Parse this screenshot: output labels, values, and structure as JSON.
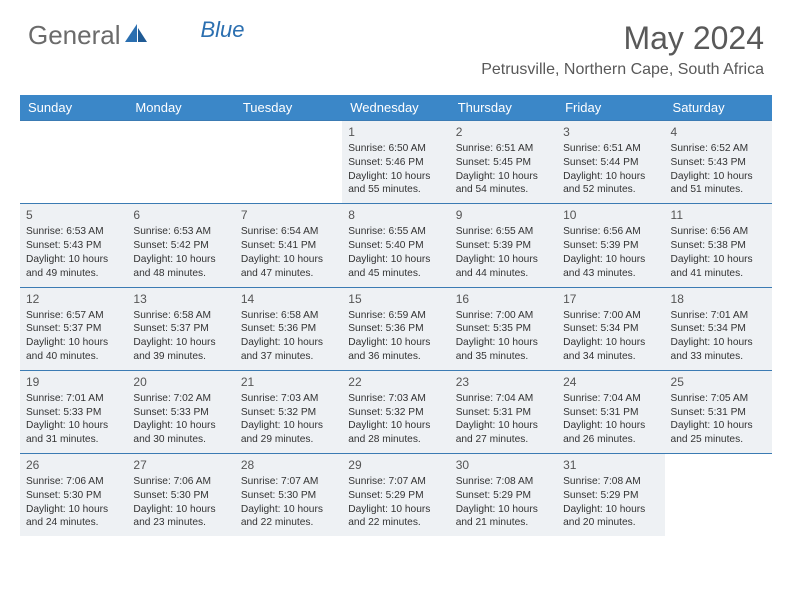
{
  "logo": {
    "text1": "General",
    "text2": "Blue"
  },
  "title": "May 2024",
  "location": "Petrusville, Northern Cape, South Africa",
  "colors": {
    "header_bg": "#3b87c8",
    "header_text": "#ffffff",
    "border": "#3b7bb3",
    "shaded_bg": "#eef1f4",
    "text": "#333333",
    "title_text": "#595959",
    "logo_gray": "#6b6b6b",
    "logo_blue": "#2b6fb0"
  },
  "day_headers": [
    "Sunday",
    "Monday",
    "Tuesday",
    "Wednesday",
    "Thursday",
    "Friday",
    "Saturday"
  ],
  "weeks": [
    [
      null,
      null,
      null,
      {
        "n": "1",
        "sr": "6:50 AM",
        "ss": "5:46 PM",
        "dl": "10 hours and 55 minutes."
      },
      {
        "n": "2",
        "sr": "6:51 AM",
        "ss": "5:45 PM",
        "dl": "10 hours and 54 minutes."
      },
      {
        "n": "3",
        "sr": "6:51 AM",
        "ss": "5:44 PM",
        "dl": "10 hours and 52 minutes."
      },
      {
        "n": "4",
        "sr": "6:52 AM",
        "ss": "5:43 PM",
        "dl": "10 hours and 51 minutes."
      }
    ],
    [
      {
        "n": "5",
        "sr": "6:53 AM",
        "ss": "5:43 PM",
        "dl": "10 hours and 49 minutes."
      },
      {
        "n": "6",
        "sr": "6:53 AM",
        "ss": "5:42 PM",
        "dl": "10 hours and 48 minutes."
      },
      {
        "n": "7",
        "sr": "6:54 AM",
        "ss": "5:41 PM",
        "dl": "10 hours and 47 minutes."
      },
      {
        "n": "8",
        "sr": "6:55 AM",
        "ss": "5:40 PM",
        "dl": "10 hours and 45 minutes."
      },
      {
        "n": "9",
        "sr": "6:55 AM",
        "ss": "5:39 PM",
        "dl": "10 hours and 44 minutes."
      },
      {
        "n": "10",
        "sr": "6:56 AM",
        "ss": "5:39 PM",
        "dl": "10 hours and 43 minutes."
      },
      {
        "n": "11",
        "sr": "6:56 AM",
        "ss": "5:38 PM",
        "dl": "10 hours and 41 minutes."
      }
    ],
    [
      {
        "n": "12",
        "sr": "6:57 AM",
        "ss": "5:37 PM",
        "dl": "10 hours and 40 minutes."
      },
      {
        "n": "13",
        "sr": "6:58 AM",
        "ss": "5:37 PM",
        "dl": "10 hours and 39 minutes."
      },
      {
        "n": "14",
        "sr": "6:58 AM",
        "ss": "5:36 PM",
        "dl": "10 hours and 37 minutes."
      },
      {
        "n": "15",
        "sr": "6:59 AM",
        "ss": "5:36 PM",
        "dl": "10 hours and 36 minutes."
      },
      {
        "n": "16",
        "sr": "7:00 AM",
        "ss": "5:35 PM",
        "dl": "10 hours and 35 minutes."
      },
      {
        "n": "17",
        "sr": "7:00 AM",
        "ss": "5:34 PM",
        "dl": "10 hours and 34 minutes."
      },
      {
        "n": "18",
        "sr": "7:01 AM",
        "ss": "5:34 PM",
        "dl": "10 hours and 33 minutes."
      }
    ],
    [
      {
        "n": "19",
        "sr": "7:01 AM",
        "ss": "5:33 PM",
        "dl": "10 hours and 31 minutes."
      },
      {
        "n": "20",
        "sr": "7:02 AM",
        "ss": "5:33 PM",
        "dl": "10 hours and 30 minutes."
      },
      {
        "n": "21",
        "sr": "7:03 AM",
        "ss": "5:32 PM",
        "dl": "10 hours and 29 minutes."
      },
      {
        "n": "22",
        "sr": "7:03 AM",
        "ss": "5:32 PM",
        "dl": "10 hours and 28 minutes."
      },
      {
        "n": "23",
        "sr": "7:04 AM",
        "ss": "5:31 PM",
        "dl": "10 hours and 27 minutes."
      },
      {
        "n": "24",
        "sr": "7:04 AM",
        "ss": "5:31 PM",
        "dl": "10 hours and 26 minutes."
      },
      {
        "n": "25",
        "sr": "7:05 AM",
        "ss": "5:31 PM",
        "dl": "10 hours and 25 minutes."
      }
    ],
    [
      {
        "n": "26",
        "sr": "7:06 AM",
        "ss": "5:30 PM",
        "dl": "10 hours and 24 minutes."
      },
      {
        "n": "27",
        "sr": "7:06 AM",
        "ss": "5:30 PM",
        "dl": "10 hours and 23 minutes."
      },
      {
        "n": "28",
        "sr": "7:07 AM",
        "ss": "5:30 PM",
        "dl": "10 hours and 22 minutes."
      },
      {
        "n": "29",
        "sr": "7:07 AM",
        "ss": "5:29 PM",
        "dl": "10 hours and 22 minutes."
      },
      {
        "n": "30",
        "sr": "7:08 AM",
        "ss": "5:29 PM",
        "dl": "10 hours and 21 minutes."
      },
      {
        "n": "31",
        "sr": "7:08 AM",
        "ss": "5:29 PM",
        "dl": "10 hours and 20 minutes."
      },
      null
    ]
  ],
  "labels": {
    "sunrise": "Sunrise:",
    "sunset": "Sunset:",
    "daylight": "Daylight:"
  }
}
